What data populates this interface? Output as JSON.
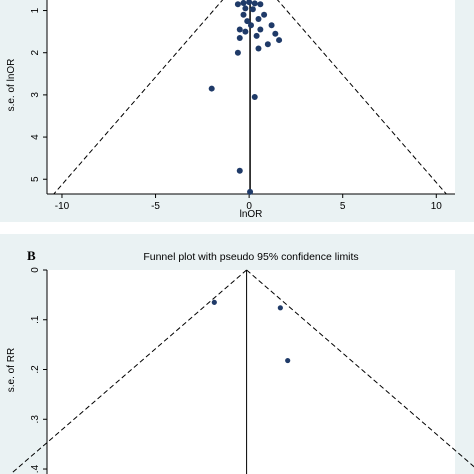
{
  "chart_data": [
    {
      "type": "scatter",
      "panel_label": "",
      "title": "",
      "xlabel": "lnOR",
      "ylabel": "s.e. of lnOR",
      "xlim": [
        -10.8,
        11
      ],
      "ylim": [
        0.75,
        5.35
      ],
      "y_reversed": true,
      "xticks": [
        -10,
        -5,
        0,
        5,
        10
      ],
      "yticks": [
        1,
        2,
        3,
        4,
        5
      ],
      "pooled_estimate": 0.05,
      "confidence_limits": "pseudo 95%",
      "points": [
        {
          "x": -0.6,
          "y": 0.85
        },
        {
          "x": -0.3,
          "y": 0.82
        },
        {
          "x": 0.0,
          "y": 0.8
        },
        {
          "x": 0.3,
          "y": 0.83
        },
        {
          "x": 0.6,
          "y": 0.85
        },
        {
          "x": -0.2,
          "y": 0.95
        },
        {
          "x": 0.2,
          "y": 0.97
        },
        {
          "x": -0.3,
          "y": 1.1
        },
        {
          "x": 0.8,
          "y": 1.1
        },
        {
          "x": 0.5,
          "y": 1.2
        },
        {
          "x": -0.1,
          "y": 1.25
        },
        {
          "x": 1.2,
          "y": 1.35
        },
        {
          "x": 0.1,
          "y": 1.35
        },
        {
          "x": -0.5,
          "y": 1.45
        },
        {
          "x": 0.6,
          "y": 1.45
        },
        {
          "x": -0.2,
          "y": 1.5
        },
        {
          "x": 1.4,
          "y": 1.55
        },
        {
          "x": 0.4,
          "y": 1.6
        },
        {
          "x": -0.5,
          "y": 1.65
        },
        {
          "x": 1.6,
          "y": 1.7
        },
        {
          "x": 1.0,
          "y": 1.8
        },
        {
          "x": 0.5,
          "y": 1.9
        },
        {
          "x": -0.6,
          "y": 2.0
        },
        {
          "x": -2.0,
          "y": 2.85
        },
        {
          "x": 0.3,
          "y": 3.05
        },
        {
          "x": -0.5,
          "y": 4.8
        },
        {
          "x": 0.05,
          "y": 5.3
        }
      ]
    },
    {
      "type": "scatter",
      "panel_label": "B",
      "title": "Funnel plot with pseudo 95% confidence limits",
      "xlabel": "",
      "ylabel": "s.e. of RR",
      "xlim": [
        -0.71,
        0.68
      ],
      "ylim": [
        0.0,
        0.41
      ],
      "y_reversed": true,
      "yticks": [
        0,
        0.1,
        0.2,
        0.3,
        0.4
      ],
      "ytick_labels": [
        "0",
        ".1",
        ".2",
        ".3",
        ".4"
      ],
      "pooled_estimate": -0.03,
      "confidence_limits": "pseudo 95%",
      "points": [
        {
          "x": -0.14,
          "y": 0.065
        },
        {
          "x": 0.085,
          "y": 0.076
        },
        {
          "x": 0.11,
          "y": 0.182
        }
      ]
    }
  ],
  "colors": {
    "background": "#eaf2f3",
    "plot_area": "#ffffff",
    "marker": "#1f3a68",
    "line": "#000000"
  }
}
